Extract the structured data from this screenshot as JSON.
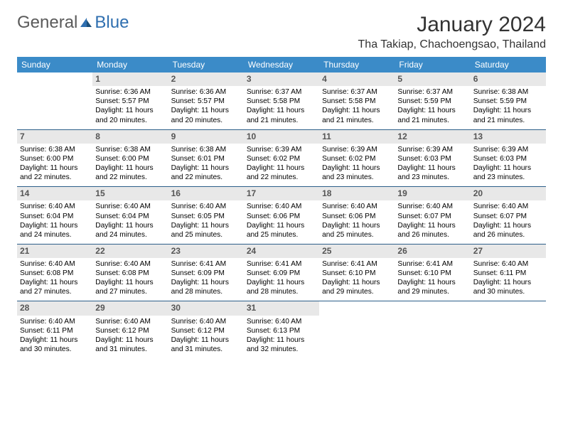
{
  "brand": {
    "part1": "General",
    "part2": "Blue"
  },
  "title": "January 2024",
  "location": "Tha Takiap, Chachoengsao, Thailand",
  "colors": {
    "header_bg": "#3b8bc8",
    "header_text": "#ffffff",
    "row_divider": "#2d5f8a",
    "daynum_bg": "#e8e8e8",
    "daynum_text": "#555555",
    "body_text": "#000000",
    "brand_gray": "#5a5a5a",
    "brand_blue": "#2f6fb0",
    "page_bg": "#ffffff"
  },
  "font": {
    "family": "Arial",
    "title_size": 30,
    "location_size": 16,
    "header_size": 12,
    "cell_size": 10.2
  },
  "weekdays": [
    "Sunday",
    "Monday",
    "Tuesday",
    "Wednesday",
    "Thursday",
    "Friday",
    "Saturday"
  ],
  "weeks": [
    [
      {
        "blank": true
      },
      {
        "n": "1",
        "sun": "Sunrise: 6:36 AM",
        "set": "Sunset: 5:57 PM",
        "d1": "Daylight: 11 hours",
        "d2": "and 20 minutes."
      },
      {
        "n": "2",
        "sun": "Sunrise: 6:36 AM",
        "set": "Sunset: 5:57 PM",
        "d1": "Daylight: 11 hours",
        "d2": "and 20 minutes."
      },
      {
        "n": "3",
        "sun": "Sunrise: 6:37 AM",
        "set": "Sunset: 5:58 PM",
        "d1": "Daylight: 11 hours",
        "d2": "and 21 minutes."
      },
      {
        "n": "4",
        "sun": "Sunrise: 6:37 AM",
        "set": "Sunset: 5:58 PM",
        "d1": "Daylight: 11 hours",
        "d2": "and 21 minutes."
      },
      {
        "n": "5",
        "sun": "Sunrise: 6:37 AM",
        "set": "Sunset: 5:59 PM",
        "d1": "Daylight: 11 hours",
        "d2": "and 21 minutes."
      },
      {
        "n": "6",
        "sun": "Sunrise: 6:38 AM",
        "set": "Sunset: 5:59 PM",
        "d1": "Daylight: 11 hours",
        "d2": "and 21 minutes."
      }
    ],
    [
      {
        "n": "7",
        "sun": "Sunrise: 6:38 AM",
        "set": "Sunset: 6:00 PM",
        "d1": "Daylight: 11 hours",
        "d2": "and 22 minutes."
      },
      {
        "n": "8",
        "sun": "Sunrise: 6:38 AM",
        "set": "Sunset: 6:00 PM",
        "d1": "Daylight: 11 hours",
        "d2": "and 22 minutes."
      },
      {
        "n": "9",
        "sun": "Sunrise: 6:38 AM",
        "set": "Sunset: 6:01 PM",
        "d1": "Daylight: 11 hours",
        "d2": "and 22 minutes."
      },
      {
        "n": "10",
        "sun": "Sunrise: 6:39 AM",
        "set": "Sunset: 6:02 PM",
        "d1": "Daylight: 11 hours",
        "d2": "and 22 minutes."
      },
      {
        "n": "11",
        "sun": "Sunrise: 6:39 AM",
        "set": "Sunset: 6:02 PM",
        "d1": "Daylight: 11 hours",
        "d2": "and 23 minutes."
      },
      {
        "n": "12",
        "sun": "Sunrise: 6:39 AM",
        "set": "Sunset: 6:03 PM",
        "d1": "Daylight: 11 hours",
        "d2": "and 23 minutes."
      },
      {
        "n": "13",
        "sun": "Sunrise: 6:39 AM",
        "set": "Sunset: 6:03 PM",
        "d1": "Daylight: 11 hours",
        "d2": "and 23 minutes."
      }
    ],
    [
      {
        "n": "14",
        "sun": "Sunrise: 6:40 AM",
        "set": "Sunset: 6:04 PM",
        "d1": "Daylight: 11 hours",
        "d2": "and 24 minutes."
      },
      {
        "n": "15",
        "sun": "Sunrise: 6:40 AM",
        "set": "Sunset: 6:04 PM",
        "d1": "Daylight: 11 hours",
        "d2": "and 24 minutes."
      },
      {
        "n": "16",
        "sun": "Sunrise: 6:40 AM",
        "set": "Sunset: 6:05 PM",
        "d1": "Daylight: 11 hours",
        "d2": "and 25 minutes."
      },
      {
        "n": "17",
        "sun": "Sunrise: 6:40 AM",
        "set": "Sunset: 6:06 PM",
        "d1": "Daylight: 11 hours",
        "d2": "and 25 minutes."
      },
      {
        "n": "18",
        "sun": "Sunrise: 6:40 AM",
        "set": "Sunset: 6:06 PM",
        "d1": "Daylight: 11 hours",
        "d2": "and 25 minutes."
      },
      {
        "n": "19",
        "sun": "Sunrise: 6:40 AM",
        "set": "Sunset: 6:07 PM",
        "d1": "Daylight: 11 hours",
        "d2": "and 26 minutes."
      },
      {
        "n": "20",
        "sun": "Sunrise: 6:40 AM",
        "set": "Sunset: 6:07 PM",
        "d1": "Daylight: 11 hours",
        "d2": "and 26 minutes."
      }
    ],
    [
      {
        "n": "21",
        "sun": "Sunrise: 6:40 AM",
        "set": "Sunset: 6:08 PM",
        "d1": "Daylight: 11 hours",
        "d2": "and 27 minutes."
      },
      {
        "n": "22",
        "sun": "Sunrise: 6:40 AM",
        "set": "Sunset: 6:08 PM",
        "d1": "Daylight: 11 hours",
        "d2": "and 27 minutes."
      },
      {
        "n": "23",
        "sun": "Sunrise: 6:41 AM",
        "set": "Sunset: 6:09 PM",
        "d1": "Daylight: 11 hours",
        "d2": "and 28 minutes."
      },
      {
        "n": "24",
        "sun": "Sunrise: 6:41 AM",
        "set": "Sunset: 6:09 PM",
        "d1": "Daylight: 11 hours",
        "d2": "and 28 minutes."
      },
      {
        "n": "25",
        "sun": "Sunrise: 6:41 AM",
        "set": "Sunset: 6:10 PM",
        "d1": "Daylight: 11 hours",
        "d2": "and 29 minutes."
      },
      {
        "n": "26",
        "sun": "Sunrise: 6:41 AM",
        "set": "Sunset: 6:10 PM",
        "d1": "Daylight: 11 hours",
        "d2": "and 29 minutes."
      },
      {
        "n": "27",
        "sun": "Sunrise: 6:40 AM",
        "set": "Sunset: 6:11 PM",
        "d1": "Daylight: 11 hours",
        "d2": "and 30 minutes."
      }
    ],
    [
      {
        "n": "28",
        "sun": "Sunrise: 6:40 AM",
        "set": "Sunset: 6:11 PM",
        "d1": "Daylight: 11 hours",
        "d2": "and 30 minutes."
      },
      {
        "n": "29",
        "sun": "Sunrise: 6:40 AM",
        "set": "Sunset: 6:12 PM",
        "d1": "Daylight: 11 hours",
        "d2": "and 31 minutes."
      },
      {
        "n": "30",
        "sun": "Sunrise: 6:40 AM",
        "set": "Sunset: 6:12 PM",
        "d1": "Daylight: 11 hours",
        "d2": "and 31 minutes."
      },
      {
        "n": "31",
        "sun": "Sunrise: 6:40 AM",
        "set": "Sunset: 6:13 PM",
        "d1": "Daylight: 11 hours",
        "d2": "and 32 minutes."
      },
      {
        "blank": true
      },
      {
        "blank": true
      },
      {
        "blank": true
      }
    ]
  ]
}
